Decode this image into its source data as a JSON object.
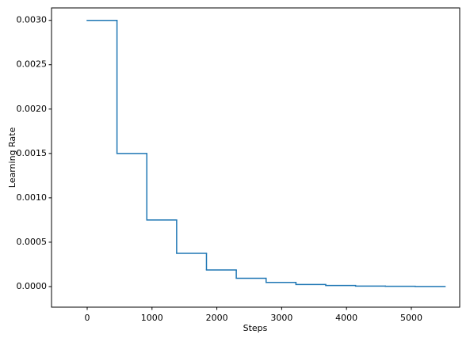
{
  "chart_data": {
    "type": "line",
    "drawstyle": "steps-post",
    "xlabel": "Steps",
    "ylabel": "Learning Rate",
    "series": [
      {
        "color": "#1f77b4",
        "x": [
          0,
          460,
          920,
          1380,
          1840,
          2300,
          2760,
          3220,
          3680,
          4140,
          4600,
          5060,
          5520
        ],
        "values": [
          0.003,
          0.0015,
          0.00075,
          0.000375,
          0.0001875,
          9.375e-05,
          4.6875e-05,
          2.34375e-05,
          1.171875e-05,
          5.859375e-06,
          2.9296875e-06,
          1.46484375e-06,
          1.46484375e-06
        ]
      }
    ],
    "xlim": [
      -550,
      5746
    ],
    "ylim": [
      -0.000232,
      0.00314
    ],
    "xticks": [
      0,
      1000,
      2000,
      3000,
      4000,
      5000
    ],
    "yticks": [
      {
        "value": 0,
        "label": "0.0000"
      },
      {
        "value": 0.0005,
        "label": "0.0005"
      },
      {
        "value": 0.001,
        "label": "0.0010"
      },
      {
        "value": 0.0015,
        "label": "0.0015"
      },
      {
        "value": 0.002,
        "label": "0.0020"
      },
      {
        "value": 0.0025,
        "label": "0.0025"
      },
      {
        "value": 0.003,
        "label": "0.0030"
      }
    ],
    "grid": false
  }
}
